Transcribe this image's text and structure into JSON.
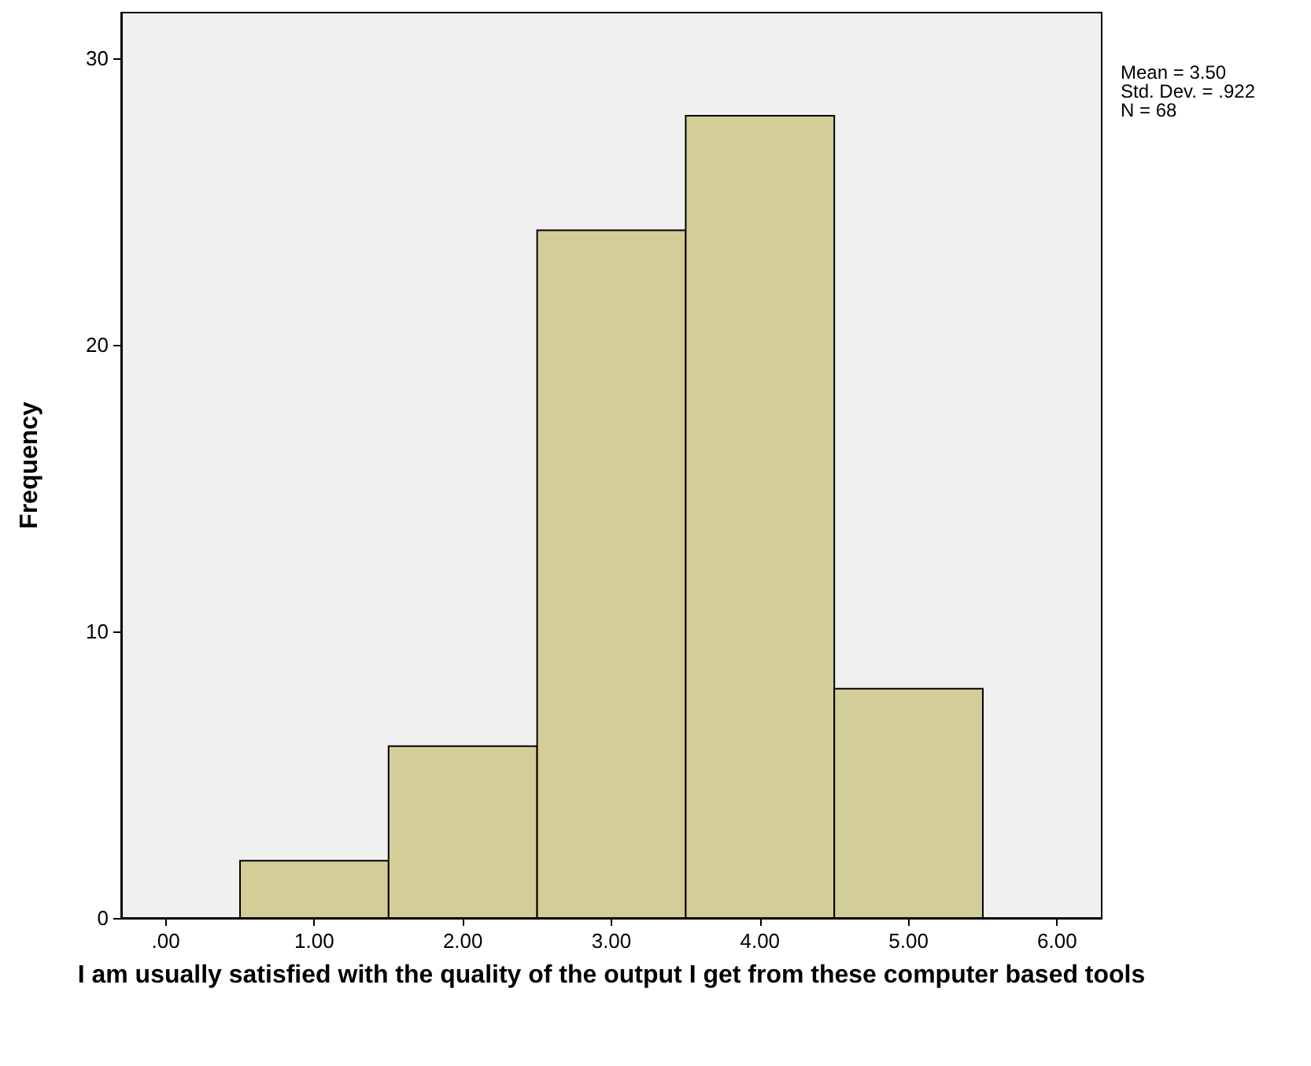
{
  "chart_data": {
    "type": "histogram",
    "xlabel": "I am usually satisfied with the quality of the output I get from these computer based tools",
    "ylabel": "Frequency",
    "bins": [
      0.5,
      1.5,
      2.5,
      3.5,
      4.5,
      5.5
    ],
    "values": [
      2,
      6,
      24,
      28,
      8
    ],
    "color": "#d3ce98",
    "xlim": [
      -0.3,
      6.3
    ],
    "ylim": [
      0,
      31.6
    ],
    "xticks": [
      {
        "value": 0,
        "label": ".00"
      },
      {
        "value": 1,
        "label": "1.00"
      },
      {
        "value": 2,
        "label": "2.00"
      },
      {
        "value": 3,
        "label": "3.00"
      },
      {
        "value": 4,
        "label": "4.00"
      },
      {
        "value": 5,
        "label": "5.00"
      },
      {
        "value": 6,
        "label": "6.00"
      }
    ],
    "yticks": [
      0,
      10,
      20,
      30
    ],
    "annotations": [
      "Mean = 3.50",
      "Std. Dev. = .922",
      "N = 68"
    ]
  }
}
